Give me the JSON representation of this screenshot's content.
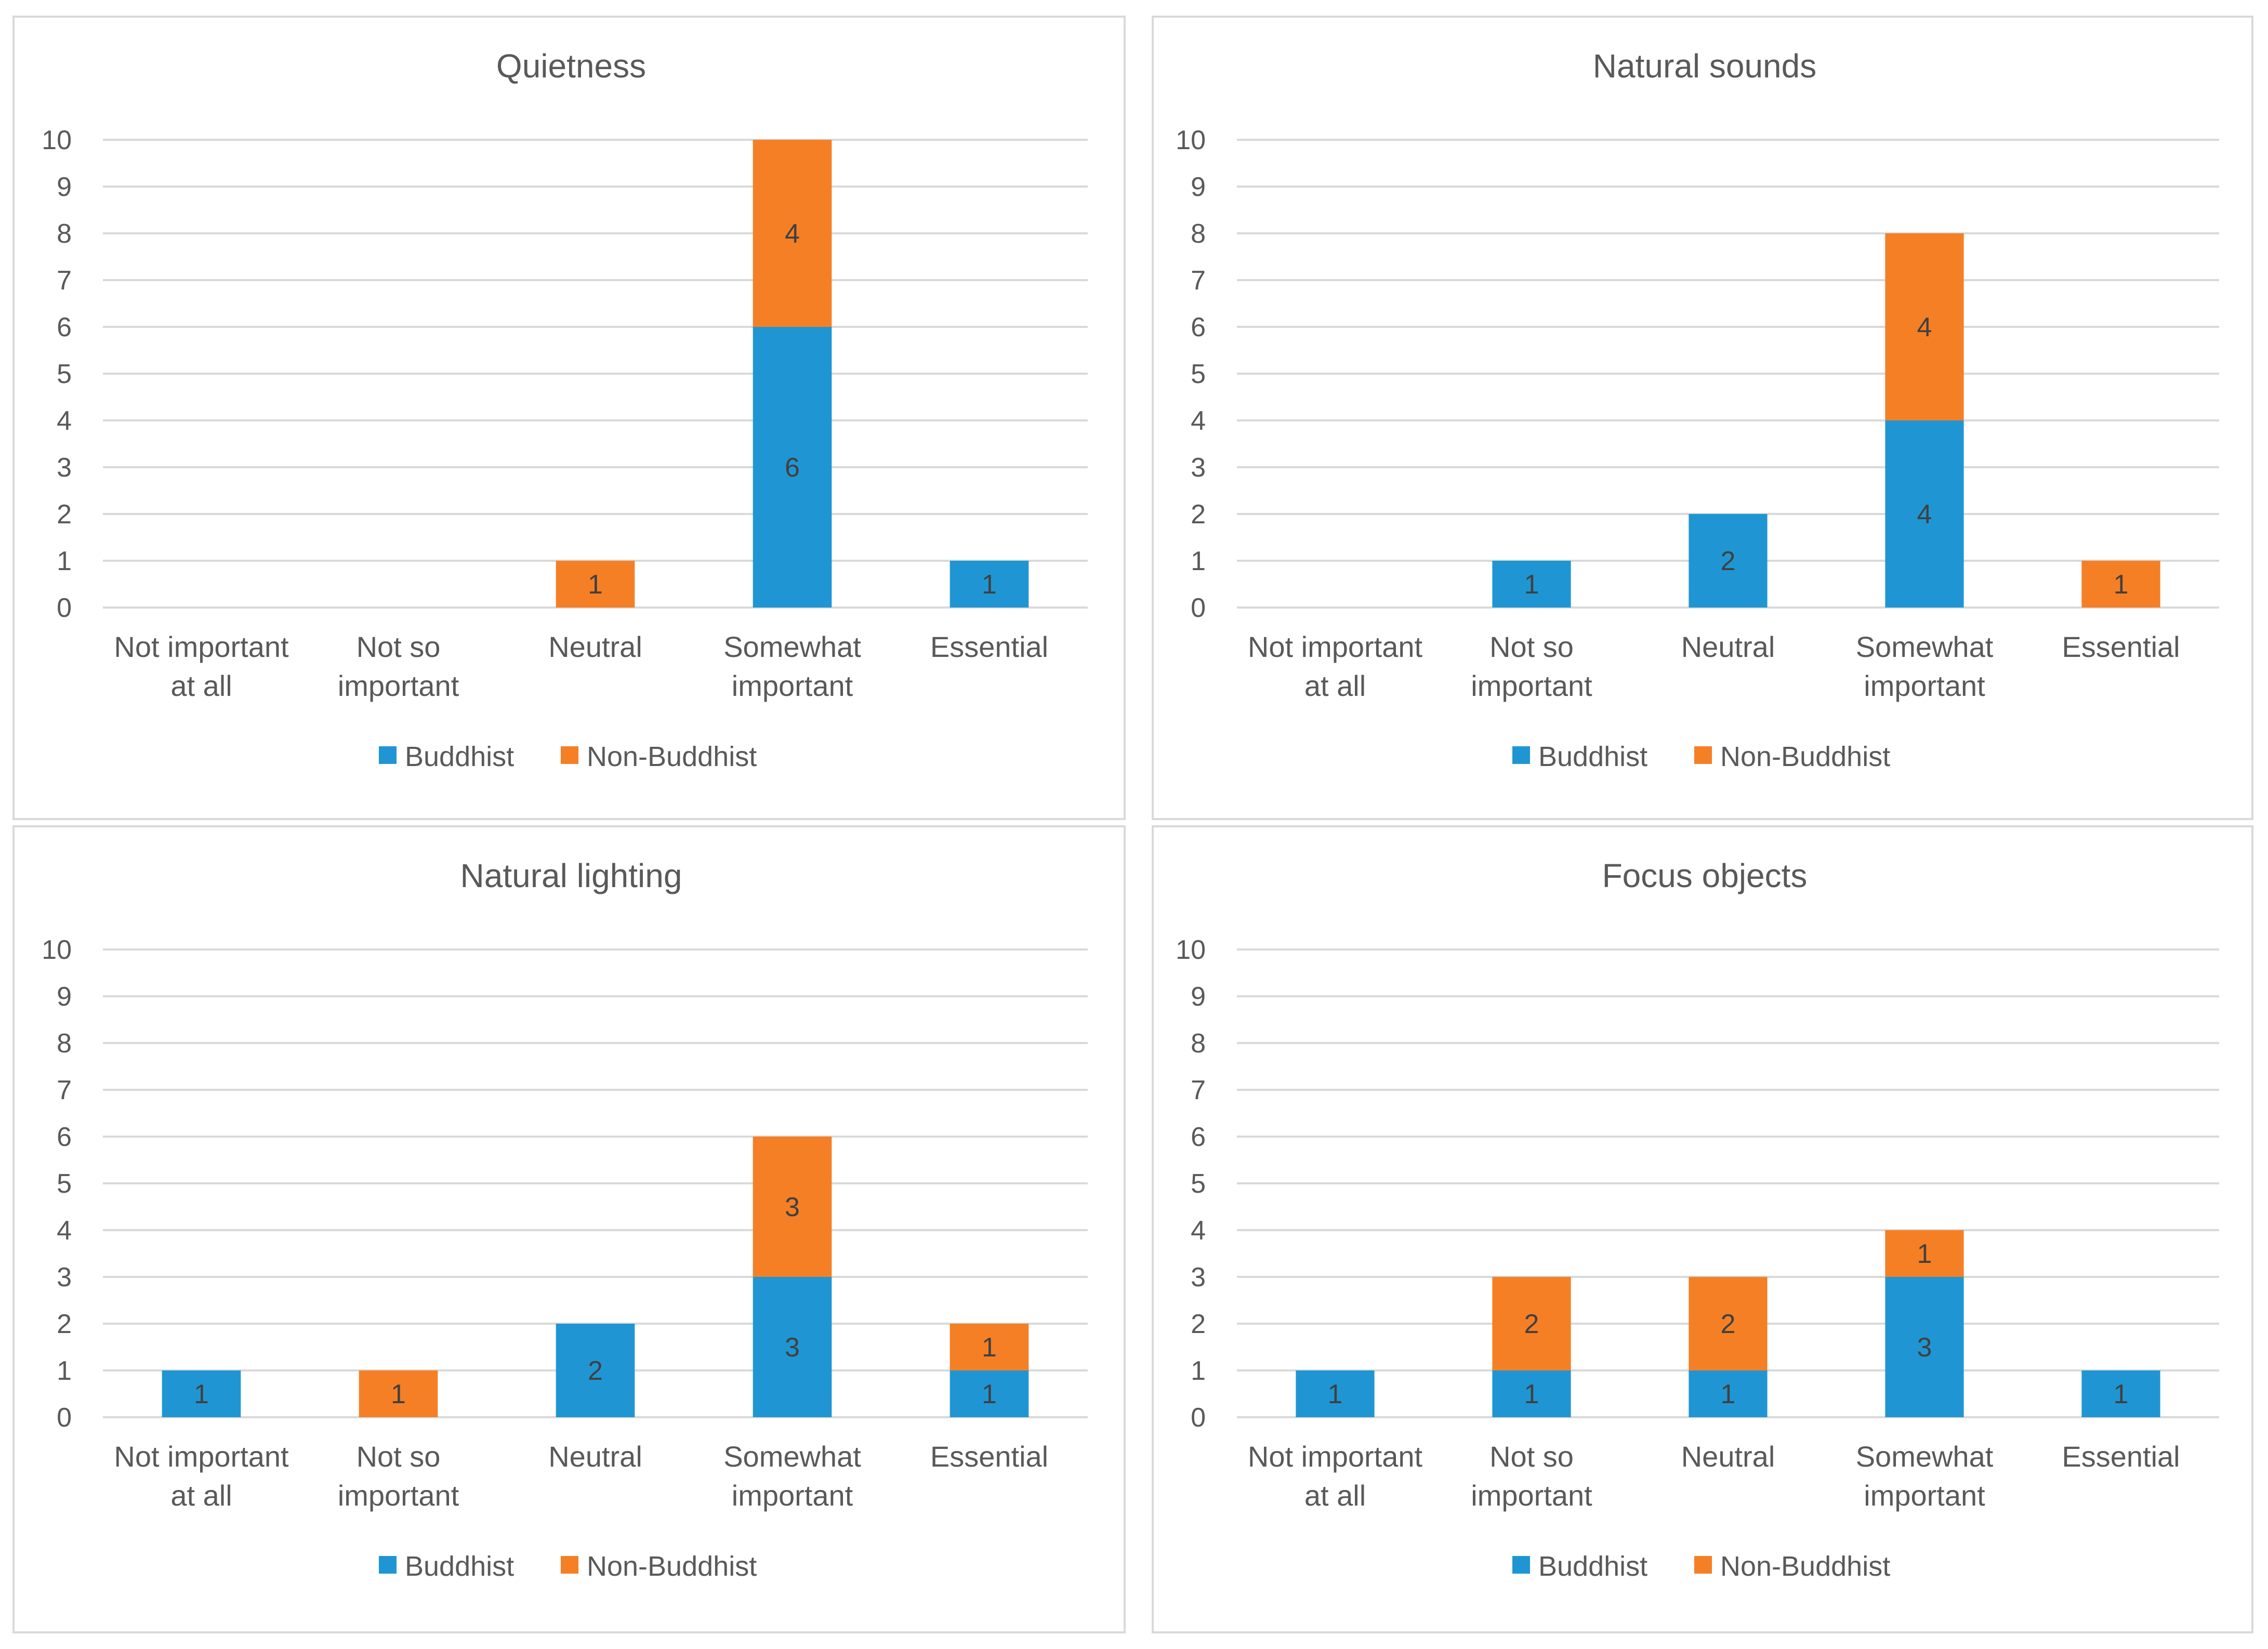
{
  "colors": {
    "buddhist": "#1f96d3",
    "non_buddhist": "#f57f25",
    "grid": "#d9d9d9",
    "text": "#595959"
  },
  "legend": {
    "series_1": "Buddhist",
    "series_2": "Non-Buddhist"
  },
  "chart_data": [
    {
      "type": "bar",
      "stacked": true,
      "title": "Quietness",
      "categories": [
        [
          "Not important",
          "at all"
        ],
        [
          "Not so",
          "important"
        ],
        [
          "Neutral"
        ],
        [
          "Somewhat",
          "important"
        ],
        [
          "Essential"
        ]
      ],
      "ylim": [
        0,
        10
      ],
      "yticks": [
        0,
        1,
        2,
        3,
        4,
        5,
        6,
        7,
        8,
        9,
        10
      ],
      "series": [
        {
          "name": "Buddhist",
          "values": [
            0,
            0,
            0,
            6,
            1
          ]
        },
        {
          "name": "Non-Buddhist",
          "values": [
            0,
            0,
            1,
            4,
            0
          ]
        }
      ],
      "legend_position": "bottom"
    },
    {
      "type": "bar",
      "stacked": true,
      "title": "Natural sounds",
      "categories": [
        [
          "Not important",
          "at all"
        ],
        [
          "Not so",
          "important"
        ],
        [
          "Neutral"
        ],
        [
          "Somewhat",
          "important"
        ],
        [
          "Essential"
        ]
      ],
      "ylim": [
        0,
        10
      ],
      "yticks": [
        0,
        1,
        2,
        3,
        4,
        5,
        6,
        7,
        8,
        9,
        10
      ],
      "series": [
        {
          "name": "Buddhist",
          "values": [
            0,
            1,
            2,
            4,
            0
          ]
        },
        {
          "name": "Non-Buddhist",
          "values": [
            0,
            0,
            0,
            4,
            1
          ]
        }
      ],
      "legend_position": "bottom"
    },
    {
      "type": "bar",
      "stacked": true,
      "title": "Natural lighting",
      "categories": [
        [
          "Not important",
          "at all"
        ],
        [
          "Not so",
          "important"
        ],
        [
          "Neutral"
        ],
        [
          "Somewhat",
          "important"
        ],
        [
          "Essential"
        ]
      ],
      "ylim": [
        0,
        10
      ],
      "yticks": [
        0,
        1,
        2,
        3,
        4,
        5,
        6,
        7,
        8,
        9,
        10
      ],
      "series": [
        {
          "name": "Buddhist",
          "values": [
            1,
            0,
            2,
            3,
            1
          ]
        },
        {
          "name": "Non-Buddhist",
          "values": [
            0,
            1,
            0,
            3,
            1
          ]
        }
      ],
      "legend_position": "bottom"
    },
    {
      "type": "bar",
      "stacked": true,
      "title": "Focus objects",
      "categories": [
        [
          "Not important",
          "at all"
        ],
        [
          "Not so",
          "important"
        ],
        [
          "Neutral"
        ],
        [
          "Somewhat",
          "important"
        ],
        [
          "Essential"
        ]
      ],
      "ylim": [
        0,
        10
      ],
      "yticks": [
        0,
        1,
        2,
        3,
        4,
        5,
        6,
        7,
        8,
        9,
        10
      ],
      "series": [
        {
          "name": "Buddhist",
          "values": [
            1,
            1,
            1,
            3,
            1
          ]
        },
        {
          "name": "Non-Buddhist",
          "values": [
            0,
            2,
            2,
            1,
            0
          ]
        }
      ],
      "legend_position": "bottom"
    }
  ]
}
